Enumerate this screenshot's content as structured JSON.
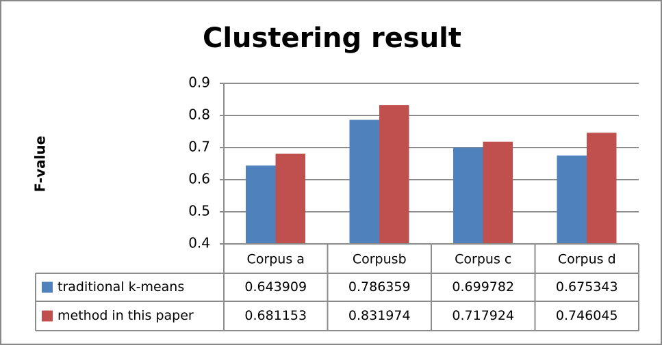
{
  "chart_data": {
    "type": "bar",
    "title": "Clustering result",
    "y_label": "F-value",
    "categories": [
      "Corpus a",
      "Corpusb",
      "Corpus c",
      "Corpus d"
    ],
    "series": [
      {
        "name": "traditional k-means",
        "color": "#4f81bd",
        "values": [
          0.643909,
          0.786359,
          0.699782,
          0.675343
        ]
      },
      {
        "name": "method in this paper",
        "color": "#c0504d",
        "values": [
          0.681153,
          0.831974,
          0.717924,
          0.746045
        ]
      }
    ],
    "ylim": [
      0.4,
      0.9
    ],
    "yticks": [
      0.4,
      0.5,
      0.6,
      0.7,
      0.8,
      0.9
    ],
    "grid": true,
    "data_table": true
  }
}
